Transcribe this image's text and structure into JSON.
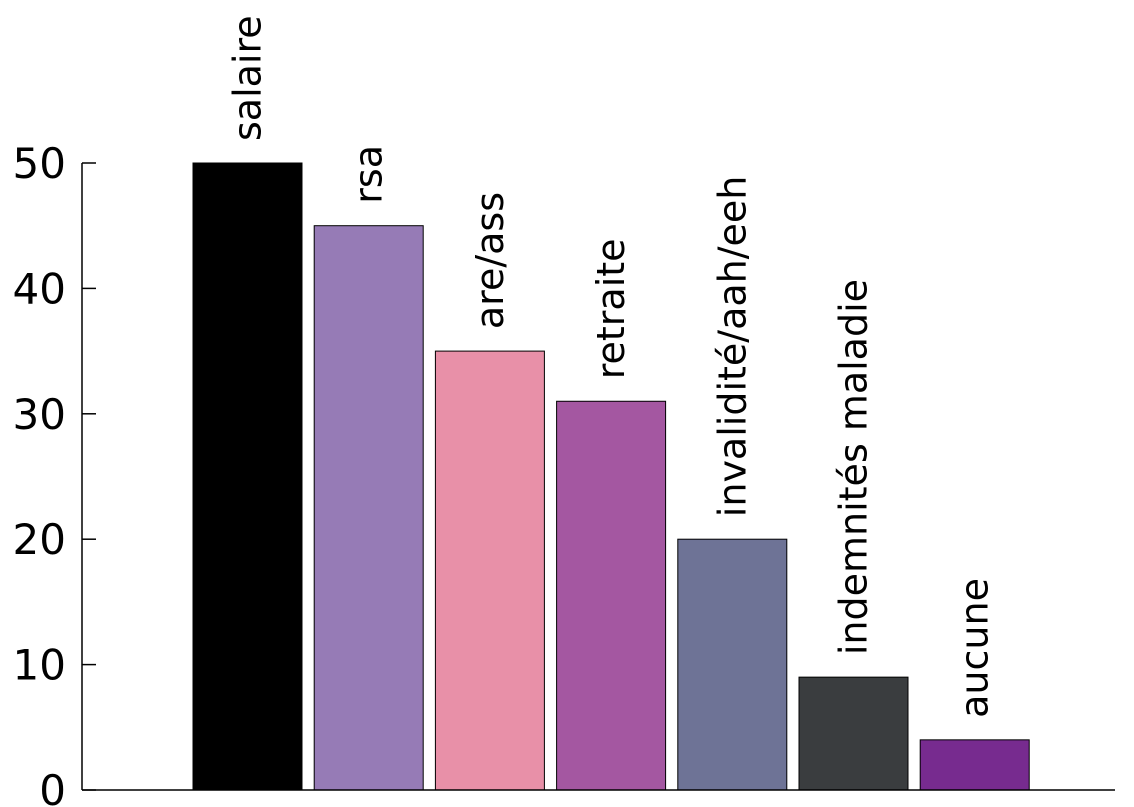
{
  "chart_data": {
    "type": "bar",
    "title": "",
    "xlabel": "",
    "ylabel": "",
    "categories": [
      "salaire",
      "rsa",
      "are/ass",
      "retraite",
      "invalidité/aah/eeh",
      "indemnités maladie",
      "aucune"
    ],
    "values": [
      50,
      45,
      35,
      31,
      20,
      9,
      4
    ],
    "colors": [
      "#000000",
      "#967bb6",
      "#e890a8",
      "#a457a1",
      "#6e7396",
      "#3a3d3f",
      "#772b8f"
    ],
    "ylim": [
      0,
      50
    ],
    "yticks": [
      0,
      10,
      20,
      30,
      40,
      50
    ],
    "grid": false,
    "legend": "none",
    "data_labels": "category names written vertically above each bar"
  }
}
